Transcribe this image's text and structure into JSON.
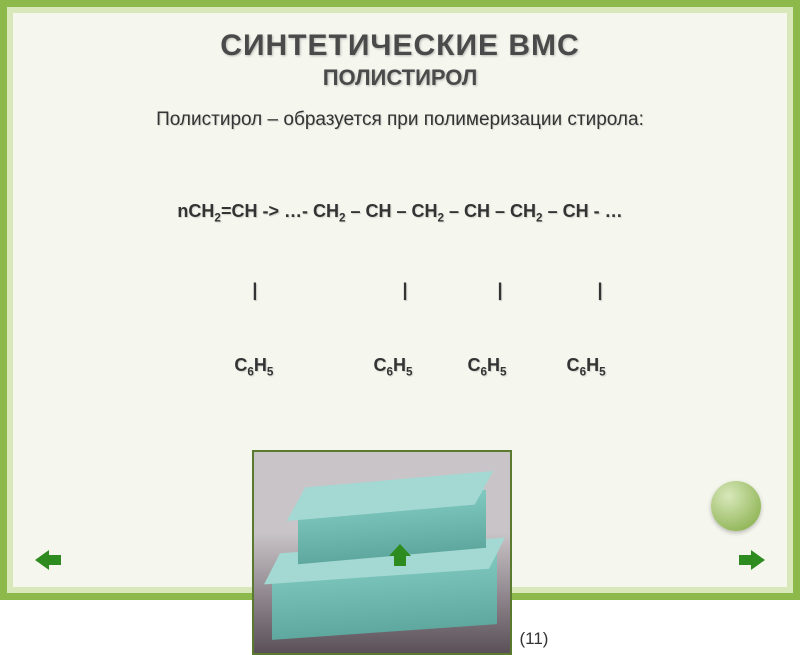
{
  "colors": {
    "outer_frame": "#8db94a",
    "mid_frame": "#d8e8bb",
    "inner_bg": "#f5f7ef",
    "title_color": "#4a4a4a",
    "text_color": "#333333",
    "image_border": "#5a7a2f",
    "foam_bg_top": "#c9c4c8",
    "foam_bg_bottom": "#5b5058",
    "foam_face": "#7fc9c0",
    "foam_top": "#a3d9d2",
    "foam_shade": "#5ea89f",
    "nav_arrow": "#2e8b1f",
    "decor_circle": "#7fa93e"
  },
  "title": "СИНТЕТИЧЕСКИЕ ВМС",
  "subtitle": "ПОЛИСТИРОЛ",
  "body": "Полистирол – образуется при полимеризации стирола:",
  "formula_line1_html": "nCH<span class='sub'>2</span>=CH -&gt; …- CH<span class='sub'>2</span> – CH – CH<span class='sub'>2</span> – CH – CH<span class='sub'>2</span> – CH - …",
  "formula_line2": "           |                             |                  |                   |",
  "formula_line3_html": "        C<span class='sub'>6</span>H<span class='sub'>5</span>                    C<span class='sub'>6</span>H<span class='sub'>5</span>           C<span class='sub'>6</span>H<span class='sub'>5</span>            C<span class='sub'>6</span>H<span class='sub'>5</span>",
  "caption": "(11)"
}
